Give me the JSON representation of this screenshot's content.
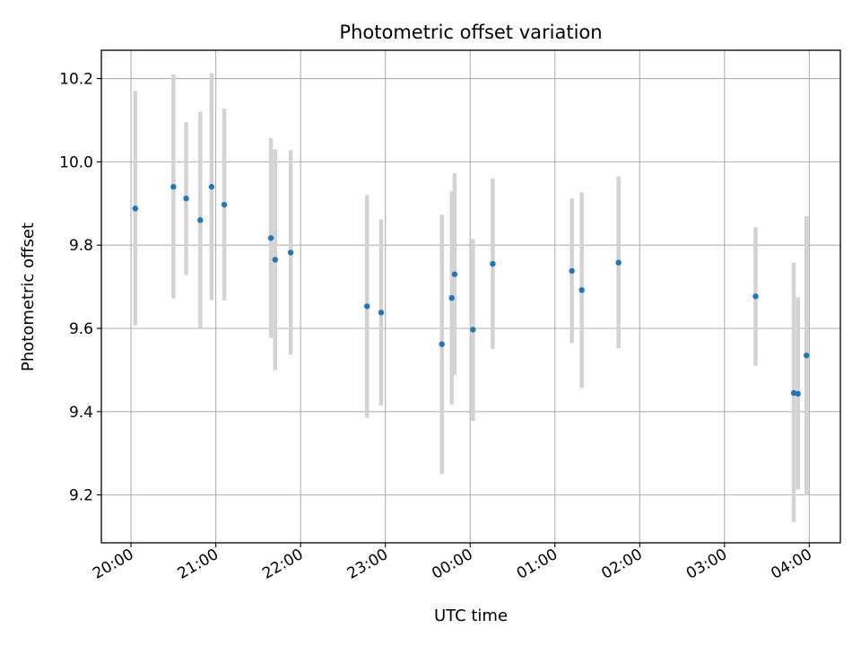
{
  "chart_data": {
    "type": "scatter",
    "title": "Photometric offset variation",
    "xlabel": "UTC time",
    "ylabel": "Photometric offset",
    "grid": true,
    "xlim": [
      "19:39",
      "04:22"
    ],
    "ylim": [
      9.085,
      10.268
    ],
    "x_ticks": [
      "20:00",
      "21:00",
      "22:00",
      "23:00",
      "00:00",
      "01:00",
      "02:00",
      "03:00",
      "04:00"
    ],
    "y_ticks": [
      9.2,
      9.4,
      9.6,
      9.8,
      10.0,
      10.2
    ],
    "x_tick_labels": [
      "20:00",
      "21:00",
      "22:00",
      "23:00",
      "00:00",
      "01:00",
      "02:00",
      "03:00",
      "04:00"
    ],
    "y_tick_labels": [
      "9.2",
      "9.4",
      "9.6",
      "9.8",
      "10.0",
      "10.2"
    ],
    "colors": {
      "point": "#1f77b4",
      "errorbar": "#d3d3d3",
      "grid": "#b0b0b0"
    },
    "series": [
      {
        "points": [
          {
            "x": "20:03",
            "y": 9.888,
            "ylo": 9.607,
            "yhi": 10.17
          },
          {
            "x": "20:30",
            "y": 9.94,
            "ylo": 9.672,
            "yhi": 10.21
          },
          {
            "x": "20:39",
            "y": 9.912,
            "ylo": 9.728,
            "yhi": 10.095
          },
          {
            "x": "20:49",
            "y": 9.86,
            "ylo": 9.6,
            "yhi": 10.12
          },
          {
            "x": "20:57",
            "y": 9.94,
            "ylo": 9.668,
            "yhi": 10.213
          },
          {
            "x": "21:06",
            "y": 9.897,
            "ylo": 9.667,
            "yhi": 10.128
          },
          {
            "x": "21:39",
            "y": 9.817,
            "ylo": 9.577,
            "yhi": 10.057
          },
          {
            "x": "21:42",
            "y": 9.765,
            "ylo": 9.5,
            "yhi": 10.03
          },
          {
            "x": "21:53",
            "y": 9.782,
            "ylo": 9.537,
            "yhi": 10.028
          },
          {
            "x": "22:47",
            "y": 9.653,
            "ylo": 9.385,
            "yhi": 9.92
          },
          {
            "x": "22:57",
            "y": 9.638,
            "ylo": 9.415,
            "yhi": 9.862
          },
          {
            "x": "23:40",
            "y": 9.562,
            "ylo": 9.25,
            "yhi": 9.873
          },
          {
            "x": "23:47",
            "y": 9.673,
            "ylo": 9.417,
            "yhi": 9.93
          },
          {
            "x": "23:49",
            "y": 9.73,
            "ylo": 9.488,
            "yhi": 9.973
          },
          {
            "x": "00:02",
            "y": 9.597,
            "ylo": 9.378,
            "yhi": 9.815
          },
          {
            "x": "00:16",
            "y": 9.755,
            "ylo": 9.55,
            "yhi": 9.96
          },
          {
            "x": "01:12",
            "y": 9.738,
            "ylo": 9.565,
            "yhi": 9.912
          },
          {
            "x": "01:19",
            "y": 9.692,
            "ylo": 9.457,
            "yhi": 9.927
          },
          {
            "x": "01:45",
            "y": 9.758,
            "ylo": 9.552,
            "yhi": 9.965
          },
          {
            "x": "03:22",
            "y": 9.677,
            "ylo": 9.51,
            "yhi": 9.843
          },
          {
            "x": "03:49",
            "y": 9.445,
            "ylo": 9.135,
            "yhi": 9.758
          },
          {
            "x": "03:52",
            "y": 9.443,
            "ylo": 9.213,
            "yhi": 9.675
          },
          {
            "x": "03:58",
            "y": 9.535,
            "ylo": 9.198,
            "yhi": 9.87
          }
        ]
      }
    ]
  }
}
